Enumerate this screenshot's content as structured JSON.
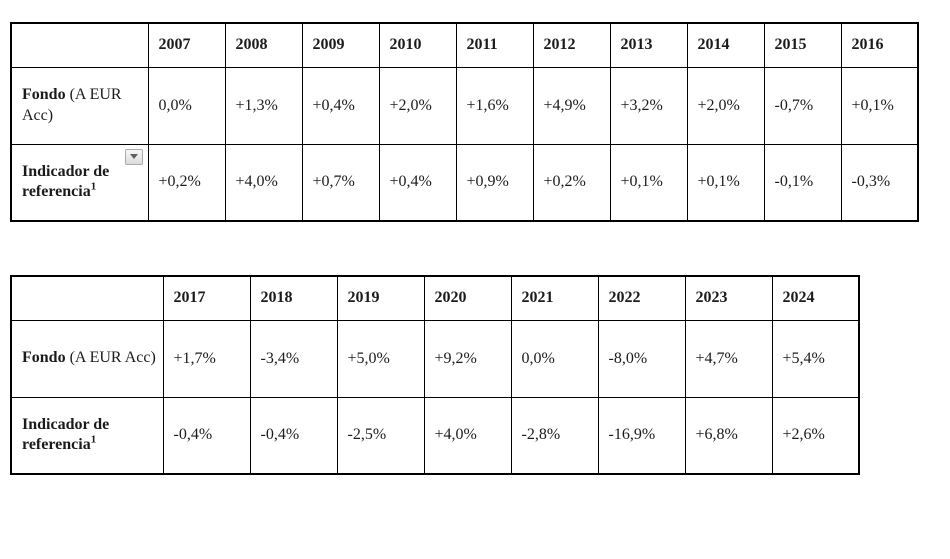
{
  "page": {
    "background": "#ffffff",
    "border_color": "#000000",
    "text_color": "#1b1b1b",
    "dropdown_bg": "#e8e8e8",
    "dropdown_border": "#ababab",
    "dropdown_arrow_color": "#5f5f5f"
  },
  "tables": [
    {
      "name": "performance-2007-2016",
      "years": [
        "2007",
        "2008",
        "2009",
        "2010",
        "2011",
        "2012",
        "2013",
        "2014",
        "2015",
        "2016"
      ],
      "fund": {
        "label_bold": "Fondo",
        "label_rest": " (A EUR Acc)",
        "values": [
          "0,0%",
          "+1,3%",
          "+0,4%",
          "+2,0%",
          "+1,6%",
          "+4,9%",
          "+3,2%",
          "+2,0%",
          "-0,7%",
          "+0,1%"
        ]
      },
      "benchmark": {
        "label": "Indicador de referencia",
        "superscript": "1",
        "dropdown_icon": "chevron-down",
        "values": [
          "+0,2%",
          "+4,0%",
          "+0,7%",
          "+0,4%",
          "+0,9%",
          "+0,2%",
          "+0,1%",
          "+0,1%",
          "-0,1%",
          "-0,3%"
        ]
      }
    },
    {
      "name": "performance-2017-2024",
      "years": [
        "2017",
        "2018",
        "2019",
        "2020",
        "2021",
        "2022",
        "2023",
        "2024"
      ],
      "fund": {
        "label_bold": "Fondo",
        "label_rest": " (A EUR Acc)",
        "values": [
          "+1,7%",
          "-3,4%",
          "+5,0%",
          "+9,2%",
          "0,0%",
          "-8,0%",
          "+4,7%",
          "+5,4%"
        ]
      },
      "benchmark": {
        "label": "Indicador de referencia",
        "superscript": "1",
        "values": [
          "-0,4%",
          "-0,4%",
          "-2,5%",
          "+4,0%",
          "-2,8%",
          "-16,9%",
          "+6,8%",
          "+2,6%"
        ]
      }
    }
  ]
}
